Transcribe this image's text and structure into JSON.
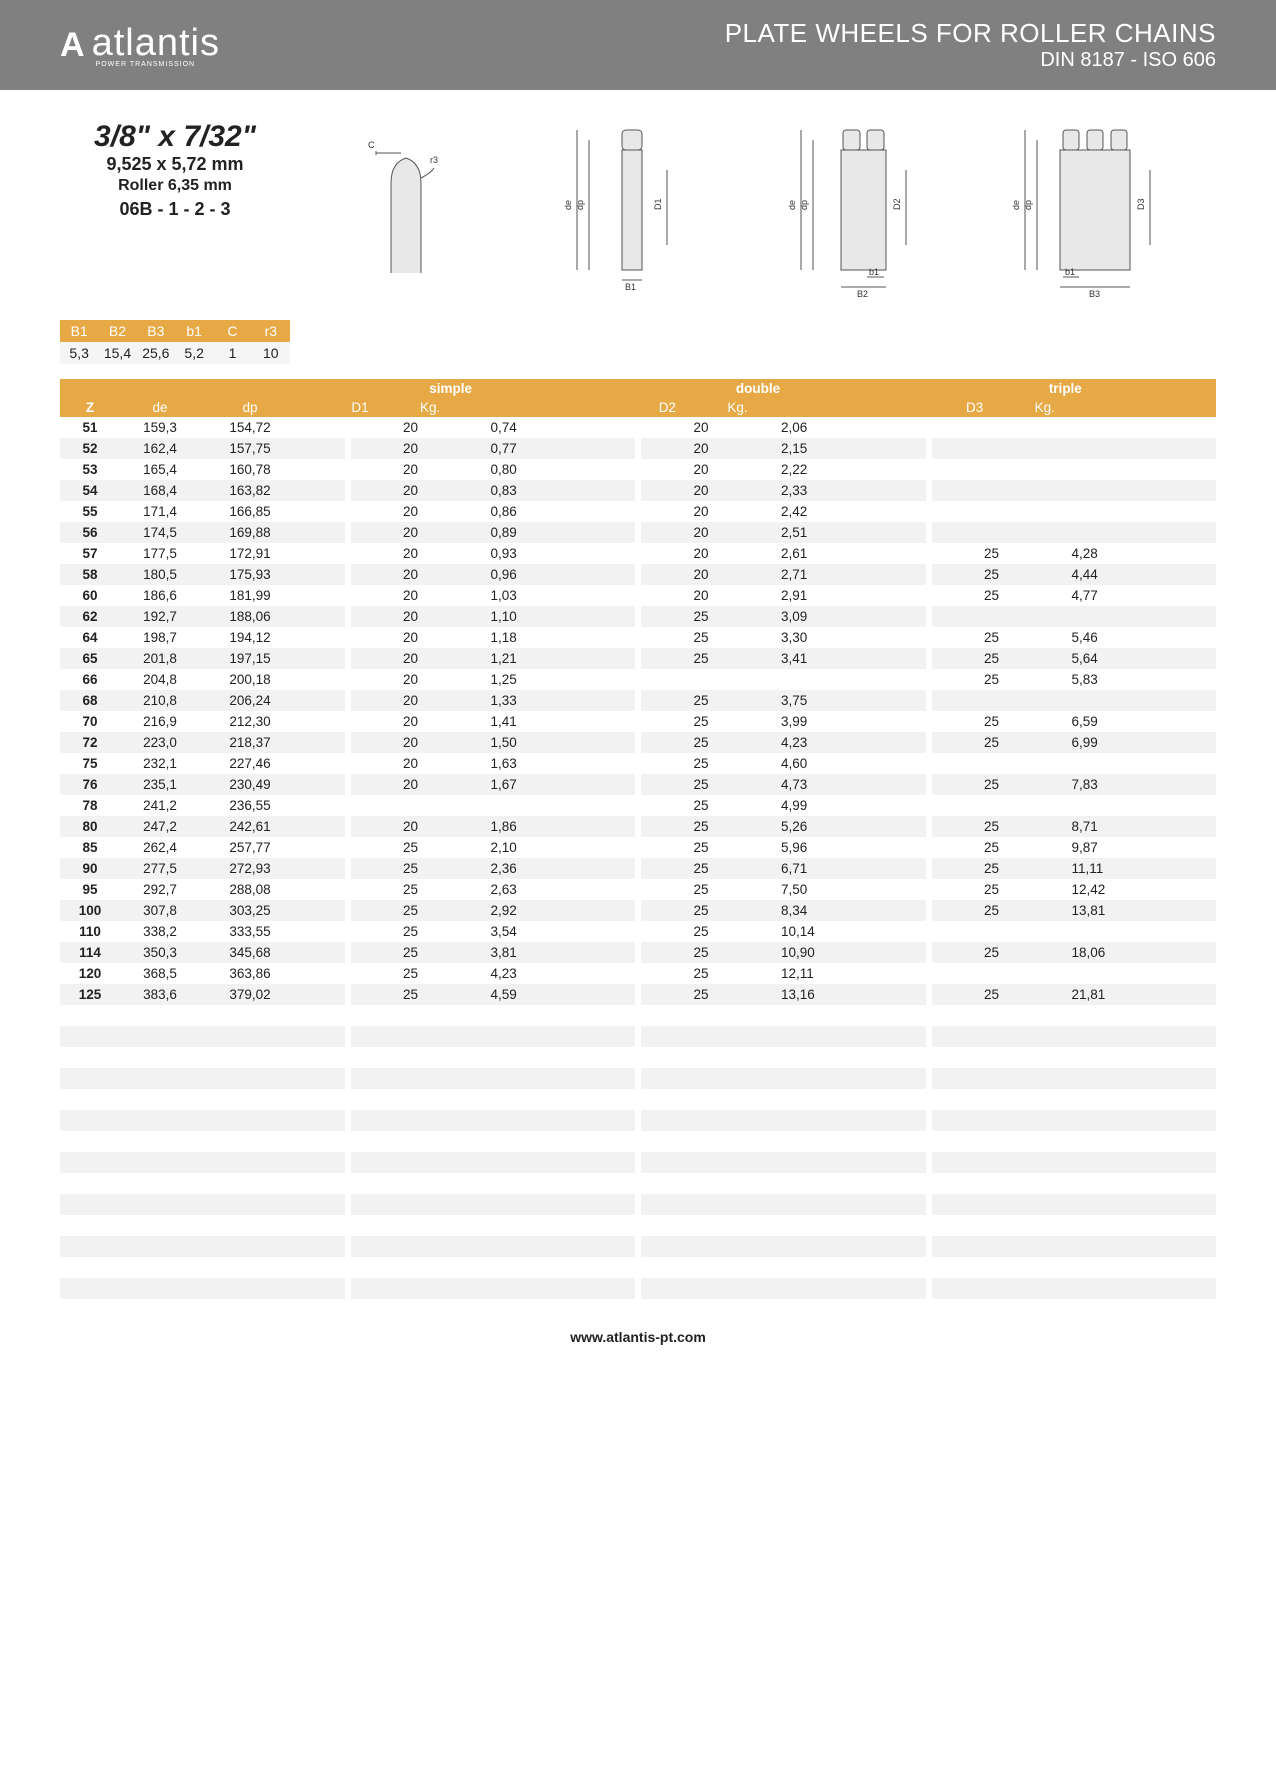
{
  "header": {
    "brand": "atlantis",
    "brand_sub": "POWER TRANSMISSION",
    "title": "PLATE WHEELS FOR ROLLER CHAINS",
    "subtitle": "DIN 8187 - ISO 606"
  },
  "spec": {
    "imperial": "3/8\" x 7/32\"",
    "metric": "9,525 x 5,72 mm",
    "roller": "Roller 6,35 mm",
    "code": "06B - 1 - 2 - 3"
  },
  "small_table": {
    "headers": [
      "B1",
      "B2",
      "B3",
      "b1",
      "C",
      "r3"
    ],
    "values": [
      "5,3",
      "15,4",
      "25,6",
      "5,2",
      "1",
      "10"
    ]
  },
  "main_table": {
    "group_labels": [
      "simple",
      "double",
      "triple"
    ],
    "sub_labels": {
      "z": "Z",
      "de": "de",
      "dp": "dp",
      "d": "D",
      "kg": "Kg."
    },
    "d_labels": [
      "D1",
      "D2",
      "D3"
    ],
    "rows": [
      {
        "z": "51",
        "de": "159,3",
        "dp": "154,72",
        "d1": "20",
        "kg1": "0,74",
        "d2": "20",
        "kg2": "2,06",
        "d3": "",
        "kg3": ""
      },
      {
        "z": "52",
        "de": "162,4",
        "dp": "157,75",
        "d1": "20",
        "kg1": "0,77",
        "d2": "20",
        "kg2": "2,15",
        "d3": "",
        "kg3": ""
      },
      {
        "z": "53",
        "de": "165,4",
        "dp": "160,78",
        "d1": "20",
        "kg1": "0,80",
        "d2": "20",
        "kg2": "2,22",
        "d3": "",
        "kg3": ""
      },
      {
        "z": "54",
        "de": "168,4",
        "dp": "163,82",
        "d1": "20",
        "kg1": "0,83",
        "d2": "20",
        "kg2": "2,33",
        "d3": "",
        "kg3": ""
      },
      {
        "z": "55",
        "de": "171,4",
        "dp": "166,85",
        "d1": "20",
        "kg1": "0,86",
        "d2": "20",
        "kg2": "2,42",
        "d3": "",
        "kg3": ""
      },
      {
        "z": "56",
        "de": "174,5",
        "dp": "169,88",
        "d1": "20",
        "kg1": "0,89",
        "d2": "20",
        "kg2": "2,51",
        "d3": "",
        "kg3": ""
      },
      {
        "z": "57",
        "de": "177,5",
        "dp": "172,91",
        "d1": "20",
        "kg1": "0,93",
        "d2": "20",
        "kg2": "2,61",
        "d3": "25",
        "kg3": "4,28"
      },
      {
        "z": "58",
        "de": "180,5",
        "dp": "175,93",
        "d1": "20",
        "kg1": "0,96",
        "d2": "20",
        "kg2": "2,71",
        "d3": "25",
        "kg3": "4,44"
      },
      {
        "z": "60",
        "de": "186,6",
        "dp": "181,99",
        "d1": "20",
        "kg1": "1,03",
        "d2": "20",
        "kg2": "2,91",
        "d3": "25",
        "kg3": "4,77"
      },
      {
        "z": "62",
        "de": "192,7",
        "dp": "188,06",
        "d1": "20",
        "kg1": "1,10",
        "d2": "25",
        "kg2": "3,09",
        "d3": "",
        "kg3": ""
      },
      {
        "z": "64",
        "de": "198,7",
        "dp": "194,12",
        "d1": "20",
        "kg1": "1,18",
        "d2": "25",
        "kg2": "3,30",
        "d3": "25",
        "kg3": "5,46"
      },
      {
        "z": "65",
        "de": "201,8",
        "dp": "197,15",
        "d1": "20",
        "kg1": "1,21",
        "d2": "25",
        "kg2": "3,41",
        "d3": "25",
        "kg3": "5,64"
      },
      {
        "z": "66",
        "de": "204,8",
        "dp": "200,18",
        "d1": "20",
        "kg1": "1,25",
        "d2": "",
        "kg2": "",
        "d3": "25",
        "kg3": "5,83"
      },
      {
        "z": "68",
        "de": "210,8",
        "dp": "206,24",
        "d1": "20",
        "kg1": "1,33",
        "d2": "25",
        "kg2": "3,75",
        "d3": "",
        "kg3": ""
      },
      {
        "z": "70",
        "de": "216,9",
        "dp": "212,30",
        "d1": "20",
        "kg1": "1,41",
        "d2": "25",
        "kg2": "3,99",
        "d3": "25",
        "kg3": "6,59"
      },
      {
        "z": "72",
        "de": "223,0",
        "dp": "218,37",
        "d1": "20",
        "kg1": "1,50",
        "d2": "25",
        "kg2": "4,23",
        "d3": "25",
        "kg3": "6,99"
      },
      {
        "z": "75",
        "de": "232,1",
        "dp": "227,46",
        "d1": "20",
        "kg1": "1,63",
        "d2": "25",
        "kg2": "4,60",
        "d3": "",
        "kg3": ""
      },
      {
        "z": "76",
        "de": "235,1",
        "dp": "230,49",
        "d1": "20",
        "kg1": "1,67",
        "d2": "25",
        "kg2": "4,73",
        "d3": "25",
        "kg3": "7,83"
      },
      {
        "z": "78",
        "de": "241,2",
        "dp": "236,55",
        "d1": "",
        "kg1": "",
        "d2": "25",
        "kg2": "4,99",
        "d3": "",
        "kg3": ""
      },
      {
        "z": "80",
        "de": "247,2",
        "dp": "242,61",
        "d1": "20",
        "kg1": "1,86",
        "d2": "25",
        "kg2": "5,26",
        "d3": "25",
        "kg3": "8,71"
      },
      {
        "z": "85",
        "de": "262,4",
        "dp": "257,77",
        "d1": "25",
        "kg1": "2,10",
        "d2": "25",
        "kg2": "5,96",
        "d3": "25",
        "kg3": "9,87"
      },
      {
        "z": "90",
        "de": "277,5",
        "dp": "272,93",
        "d1": "25",
        "kg1": "2,36",
        "d2": "25",
        "kg2": "6,71",
        "d3": "25",
        "kg3": "11,11"
      },
      {
        "z": "95",
        "de": "292,7",
        "dp": "288,08",
        "d1": "25",
        "kg1": "2,63",
        "d2": "25",
        "kg2": "7,50",
        "d3": "25",
        "kg3": "12,42"
      },
      {
        "z": "100",
        "de": "307,8",
        "dp": "303,25",
        "d1": "25",
        "kg1": "2,92",
        "d2": "25",
        "kg2": "8,34",
        "d3": "25",
        "kg3": "13,81"
      },
      {
        "z": "110",
        "de": "338,2",
        "dp": "333,55",
        "d1": "25",
        "kg1": "3,54",
        "d2": "25",
        "kg2": "10,14",
        "d3": "",
        "kg3": ""
      },
      {
        "z": "114",
        "de": "350,3",
        "dp": "345,68",
        "d1": "25",
        "kg1": "3,81",
        "d2": "25",
        "kg2": "10,90",
        "d3": "25",
        "kg3": "18,06"
      },
      {
        "z": "120",
        "de": "368,5",
        "dp": "363,86",
        "d1": "25",
        "kg1": "4,23",
        "d2": "25",
        "kg2": "12,11",
        "d3": "",
        "kg3": ""
      },
      {
        "z": "125",
        "de": "383,6",
        "dp": "379,02",
        "d1": "25",
        "kg1": "4,59",
        "d2": "25",
        "kg2": "13,16",
        "d3": "25",
        "kg3": "21,81"
      }
    ],
    "empty_rows": 14
  },
  "footer": "www.atlantis-pt.com",
  "colors": {
    "accent": "#e6a946",
    "header_bg": "#808080",
    "row_alt": "#f2f2f2"
  }
}
